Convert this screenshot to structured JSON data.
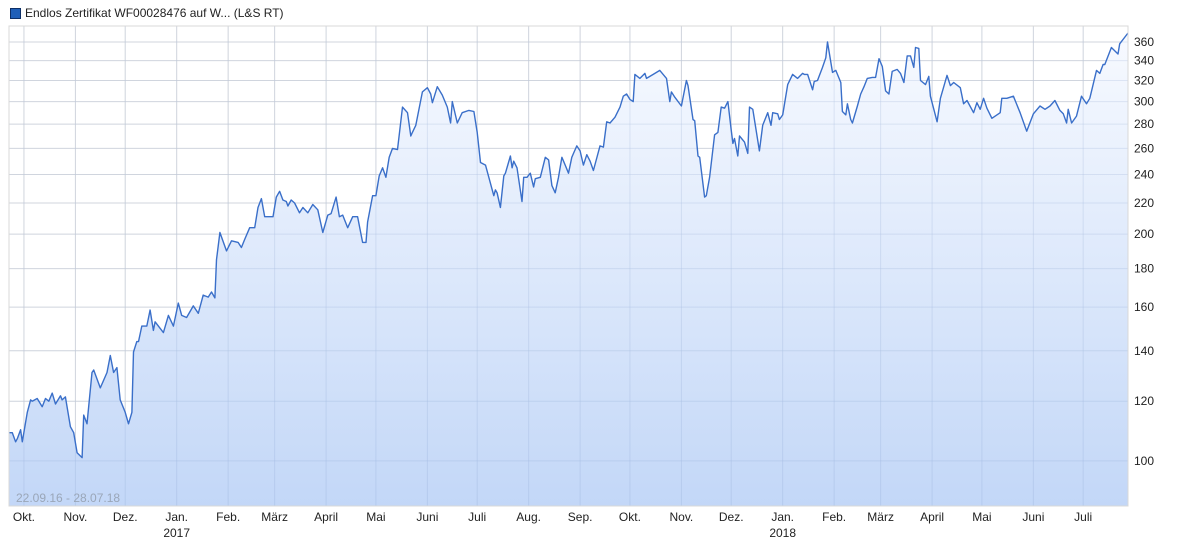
{
  "chart_data": {
    "type": "area",
    "legend": {
      "label": "Endlos Zertifikat WF00028476 auf W... (L&S RT)",
      "color": "#1f5fb8",
      "placement": "top-left"
    },
    "range_label": "22.09.16 - 28.07.18",
    "y_scale": "log",
    "ylim": [
      87.1,
      378
    ],
    "xlim": [
      "2016-09-22",
      "2018-07-28"
    ],
    "grid": true,
    "y_axis_position": "right",
    "line_color": "#3a6fc9",
    "fill_top_color": "#f6f9ff",
    "fill_bottom_color": "#b8d0f6",
    "y_ticks": [
      100,
      120,
      140,
      160,
      180,
      200,
      220,
      240,
      260,
      280,
      300,
      320,
      340,
      360
    ],
    "x_ticks": [
      {
        "date": "2016-10-01",
        "label": "Okt."
      },
      {
        "date": "2016-11-01",
        "label": "Nov."
      },
      {
        "date": "2016-12-01",
        "label": "Dez."
      },
      {
        "date": "2017-01-01",
        "label": "Jan.",
        "year": "2017"
      },
      {
        "date": "2017-02-01",
        "label": "Feb."
      },
      {
        "date": "2017-03-01",
        "label": "März"
      },
      {
        "date": "2017-04-01",
        "label": "April"
      },
      {
        "date": "2017-05-01",
        "label": "Mai"
      },
      {
        "date": "2017-06-01",
        "label": "Juni"
      },
      {
        "date": "2017-07-01",
        "label": "Juli"
      },
      {
        "date": "2017-08-01",
        "label": "Aug."
      },
      {
        "date": "2017-09-01",
        "label": "Sep."
      },
      {
        "date": "2017-10-01",
        "label": "Okt."
      },
      {
        "date": "2017-11-01",
        "label": "Nov."
      },
      {
        "date": "2017-12-01",
        "label": "Dez."
      },
      {
        "date": "2018-01-01",
        "label": "Jan.",
        "year": "2018"
      },
      {
        "date": "2018-02-01",
        "label": "Feb."
      },
      {
        "date": "2018-03-01",
        "label": "März"
      },
      {
        "date": "2018-04-01",
        "label": "April"
      },
      {
        "date": "2018-05-01",
        "label": "Mai"
      },
      {
        "date": "2018-06-01",
        "label": "Juni"
      },
      {
        "date": "2018-07-01",
        "label": "Juli"
      }
    ],
    "series": [
      [
        "2016-09-22",
        109
      ],
      [
        "2016-09-24",
        109
      ],
      [
        "2016-09-26",
        106
      ],
      [
        "2016-09-27",
        107
      ],
      [
        "2016-09-29",
        110
      ],
      [
        "2016-09-30",
        106
      ],
      [
        "2016-10-03",
        116
      ],
      [
        "2016-10-05",
        120.5
      ],
      [
        "2016-10-06",
        120
      ],
      [
        "2016-10-09",
        121
      ],
      [
        "2016-10-12",
        118
      ],
      [
        "2016-10-14",
        121
      ],
      [
        "2016-10-16",
        120
      ],
      [
        "2016-10-18",
        123
      ],
      [
        "2016-10-20",
        119
      ],
      [
        "2016-10-23",
        122
      ],
      [
        "2016-10-24",
        120.5
      ],
      [
        "2016-10-26",
        121.6
      ],
      [
        "2016-10-29",
        111
      ],
      [
        "2016-10-31",
        109
      ],
      [
        "2016-11-02",
        102.5
      ],
      [
        "2016-11-05",
        101
      ],
      [
        "2016-11-06",
        115
      ],
      [
        "2016-11-08",
        112
      ],
      [
        "2016-11-11",
        131
      ],
      [
        "2016-11-12",
        132
      ],
      [
        "2016-11-16",
        125
      ],
      [
        "2016-11-20",
        131
      ],
      [
        "2016-11-22",
        138
      ],
      [
        "2016-11-24",
        131
      ],
      [
        "2016-11-26",
        133
      ],
      [
        "2016-11-28",
        120.5
      ],
      [
        "2016-12-01",
        116
      ],
      [
        "2016-12-03",
        112
      ],
      [
        "2016-12-05",
        116
      ],
      [
        "2016-12-06",
        139.5
      ],
      [
        "2016-12-08",
        144
      ],
      [
        "2016-12-09",
        144
      ],
      [
        "2016-12-11",
        151
      ],
      [
        "2016-12-14",
        151
      ],
      [
        "2016-12-16",
        158.6
      ],
      [
        "2016-12-18",
        149
      ],
      [
        "2016-12-19",
        153
      ],
      [
        "2016-12-24",
        148
      ],
      [
        "2016-12-27",
        156
      ],
      [
        "2016-12-30",
        151
      ],
      [
        "2017-01-02",
        162
      ],
      [
        "2017-01-04",
        156
      ],
      [
        "2017-01-07",
        155
      ],
      [
        "2017-01-11",
        160.6
      ],
      [
        "2017-01-14",
        157
      ],
      [
        "2017-01-17",
        166
      ],
      [
        "2017-01-20",
        165
      ],
      [
        "2017-01-22",
        167.6
      ],
      [
        "2017-01-24",
        164.6
      ],
      [
        "2017-01-25",
        185
      ],
      [
        "2017-01-27",
        201
      ],
      [
        "2017-01-31",
        190
      ],
      [
        "2017-02-03",
        196
      ],
      [
        "2017-02-07",
        195
      ],
      [
        "2017-02-09",
        192
      ],
      [
        "2017-02-11",
        197
      ],
      [
        "2017-02-14",
        204
      ],
      [
        "2017-02-17",
        204
      ],
      [
        "2017-02-19",
        217
      ],
      [
        "2017-02-21",
        223
      ],
      [
        "2017-02-23",
        211
      ],
      [
        "2017-02-28",
        211
      ],
      [
        "2017-03-02",
        224
      ],
      [
        "2017-03-04",
        228
      ],
      [
        "2017-03-06",
        222
      ],
      [
        "2017-03-08",
        221
      ],
      [
        "2017-03-09",
        218
      ],
      [
        "2017-03-11",
        222
      ],
      [
        "2017-03-13",
        220
      ],
      [
        "2017-03-16",
        213.5
      ],
      [
        "2017-03-18",
        217
      ],
      [
        "2017-03-21",
        213.5
      ],
      [
        "2017-03-24",
        219
      ],
      [
        "2017-03-27",
        215.5
      ],
      [
        "2017-03-30",
        201
      ],
      [
        "2017-04-02",
        212
      ],
      [
        "2017-04-04",
        213
      ],
      [
        "2017-04-07",
        224
      ],
      [
        "2017-04-09",
        211
      ],
      [
        "2017-04-11",
        212
      ],
      [
        "2017-04-14",
        204
      ],
      [
        "2017-04-17",
        211
      ],
      [
        "2017-04-20",
        211
      ],
      [
        "2017-04-23",
        195
      ],
      [
        "2017-04-25",
        195
      ],
      [
        "2017-04-26",
        207.6
      ],
      [
        "2017-04-29",
        225
      ],
      [
        "2017-05-01",
        225
      ],
      [
        "2017-05-03",
        239
      ],
      [
        "2017-05-05",
        245
      ],
      [
        "2017-05-07",
        238
      ],
      [
        "2017-05-09",
        253
      ],
      [
        "2017-05-11",
        260
      ],
      [
        "2017-05-14",
        259
      ],
      [
        "2017-05-17",
        295
      ],
      [
        "2017-05-20",
        290
      ],
      [
        "2017-05-22",
        270
      ],
      [
        "2017-05-23",
        273
      ],
      [
        "2017-05-25",
        279
      ],
      [
        "2017-05-29",
        309
      ],
      [
        "2017-06-01",
        313
      ],
      [
        "2017-06-03",
        307
      ],
      [
        "2017-06-04",
        299
      ],
      [
        "2017-06-07",
        314
      ],
      [
        "2017-06-10",
        306
      ],
      [
        "2017-06-13",
        295
      ],
      [
        "2017-06-15",
        281
      ],
      [
        "2017-06-16",
        300
      ],
      [
        "2017-06-19",
        281
      ],
      [
        "2017-06-22",
        290
      ],
      [
        "2017-06-26",
        292
      ],
      [
        "2017-06-29",
        291
      ],
      [
        "2017-07-01",
        273
      ],
      [
        "2017-07-03",
        249
      ],
      [
        "2017-07-06",
        247
      ],
      [
        "2017-07-11",
        225
      ],
      [
        "2017-07-12",
        229
      ],
      [
        "2017-07-13",
        227
      ],
      [
        "2017-07-15",
        217
      ],
      [
        "2017-07-17",
        239
      ],
      [
        "2017-07-18",
        241
      ],
      [
        "2017-07-21",
        254
      ],
      [
        "2017-07-22",
        245
      ],
      [
        "2017-07-23",
        250
      ],
      [
        "2017-07-25",
        245
      ],
      [
        "2017-07-28",
        221
      ],
      [
        "2017-07-29",
        238
      ],
      [
        "2017-07-31",
        238
      ],
      [
        "2017-08-02",
        241
      ],
      [
        "2017-08-04",
        231
      ],
      [
        "2017-08-05",
        237
      ],
      [
        "2017-08-08",
        238
      ],
      [
        "2017-08-11",
        253
      ],
      [
        "2017-08-13",
        251
      ],
      [
        "2017-08-15",
        232
      ],
      [
        "2017-08-17",
        227
      ],
      [
        "2017-08-19",
        238
      ],
      [
        "2017-08-21",
        253
      ],
      [
        "2017-08-23",
        247
      ],
      [
        "2017-08-25",
        241
      ],
      [
        "2017-08-27",
        253
      ],
      [
        "2017-08-28",
        256
      ],
      [
        "2017-08-30",
        262
      ],
      [
        "2017-09-01",
        258
      ],
      [
        "2017-09-03",
        247
      ],
      [
        "2017-09-05",
        255
      ],
      [
        "2017-09-07",
        250
      ],
      [
        "2017-09-09",
        243
      ],
      [
        "2017-09-13",
        262
      ],
      [
        "2017-09-15",
        261
      ],
      [
        "2017-09-17",
        282
      ],
      [
        "2017-09-19",
        281
      ],
      [
        "2017-09-22",
        286
      ],
      [
        "2017-09-25",
        295
      ],
      [
        "2017-09-27",
        305
      ],
      [
        "2017-09-29",
        307
      ],
      [
        "2017-10-01",
        302
      ],
      [
        "2017-10-03",
        300
      ],
      [
        "2017-10-04",
        326
      ],
      [
        "2017-10-07",
        322
      ],
      [
        "2017-10-10",
        327
      ],
      [
        "2017-10-11",
        322
      ],
      [
        "2017-10-15",
        326
      ],
      [
        "2017-10-19",
        330
      ],
      [
        "2017-10-23",
        322
      ],
      [
        "2017-10-25",
        300
      ],
      [
        "2017-10-26",
        309
      ],
      [
        "2017-10-28",
        304
      ],
      [
        "2017-11-01",
        296
      ],
      [
        "2017-11-04",
        320
      ],
      [
        "2017-11-05",
        315
      ],
      [
        "2017-11-08",
        284
      ],
      [
        "2017-11-09",
        283
      ],
      [
        "2017-11-11",
        254
      ],
      [
        "2017-11-12",
        253
      ],
      [
        "2017-11-15",
        224
      ],
      [
        "2017-11-16",
        225
      ],
      [
        "2017-11-18",
        238
      ],
      [
        "2017-11-21",
        271
      ],
      [
        "2017-11-23",
        273
      ],
      [
        "2017-11-25",
        295
      ],
      [
        "2017-11-27",
        294
      ],
      [
        "2017-11-29",
        300
      ],
      [
        "2017-12-01",
        275
      ],
      [
        "2017-12-02",
        264
      ],
      [
        "2017-12-03",
        268
      ],
      [
        "2017-12-05",
        254
      ],
      [
        "2017-12-06",
        270
      ],
      [
        "2017-12-09",
        265
      ],
      [
        "2017-12-11",
        256
      ],
      [
        "2017-12-12",
        295
      ],
      [
        "2017-12-14",
        293
      ],
      [
        "2017-12-18",
        258
      ],
      [
        "2017-12-20",
        279
      ],
      [
        "2017-12-23",
        290
      ],
      [
        "2017-12-25",
        279
      ],
      [
        "2017-12-26",
        290
      ],
      [
        "2017-12-29",
        289
      ],
      [
        "2017-12-30",
        284
      ],
      [
        "2018-01-01",
        288
      ],
      [
        "2018-01-04",
        316
      ],
      [
        "2018-01-07",
        326
      ],
      [
        "2018-01-10",
        322
      ],
      [
        "2018-01-13",
        327
      ],
      [
        "2018-01-14",
        326
      ],
      [
        "2018-01-16",
        326
      ],
      [
        "2018-01-19",
        311
      ],
      [
        "2018-01-20",
        319
      ],
      [
        "2018-01-22",
        320
      ],
      [
        "2018-01-25",
        333
      ],
      [
        "2018-01-27",
        343
      ],
      [
        "2018-01-28",
        360
      ],
      [
        "2018-01-31",
        328
      ],
      [
        "2018-02-02",
        330
      ],
      [
        "2018-02-05",
        318
      ],
      [
        "2018-02-06",
        291
      ],
      [
        "2018-02-08",
        288
      ],
      [
        "2018-02-09",
        298
      ],
      [
        "2018-02-11",
        284
      ],
      [
        "2018-02-12",
        281
      ],
      [
        "2018-02-15",
        296
      ],
      [
        "2018-02-17",
        307
      ],
      [
        "2018-02-19",
        314
      ],
      [
        "2018-02-21",
        322
      ],
      [
        "2018-02-24",
        323
      ],
      [
        "2018-02-26",
        323
      ],
      [
        "2018-02-28",
        342
      ],
      [
        "2018-03-02",
        334
      ],
      [
        "2018-03-04",
        310
      ],
      [
        "2018-03-06",
        307
      ],
      [
        "2018-03-08",
        329
      ],
      [
        "2018-03-11",
        331
      ],
      [
        "2018-03-13",
        327
      ],
      [
        "2018-03-15",
        318
      ],
      [
        "2018-03-17",
        345
      ],
      [
        "2018-03-19",
        345
      ],
      [
        "2018-03-21",
        333
      ],
      [
        "2018-03-22",
        354
      ],
      [
        "2018-03-24",
        353
      ],
      [
        "2018-03-25",
        320
      ],
      [
        "2018-03-28",
        316
      ],
      [
        "2018-03-30",
        324
      ],
      [
        "2018-03-31",
        305
      ],
      [
        "2018-04-04",
        282
      ],
      [
        "2018-04-06",
        303
      ],
      [
        "2018-04-10",
        325
      ],
      [
        "2018-04-12",
        315
      ],
      [
        "2018-04-14",
        318
      ],
      [
        "2018-04-18",
        313
      ],
      [
        "2018-04-20",
        298
      ],
      [
        "2018-04-22",
        301
      ],
      [
        "2018-04-26",
        290
      ],
      [
        "2018-04-28",
        299
      ],
      [
        "2018-04-30",
        293
      ],
      [
        "2018-05-02",
        303
      ],
      [
        "2018-05-04",
        294
      ],
      [
        "2018-05-07",
        285
      ],
      [
        "2018-05-12",
        290
      ],
      [
        "2018-05-13",
        303
      ],
      [
        "2018-05-16",
        303
      ],
      [
        "2018-05-20",
        305
      ],
      [
        "2018-05-24",
        290
      ],
      [
        "2018-05-28",
        274
      ],
      [
        "2018-06-01",
        289
      ],
      [
        "2018-06-05",
        296
      ],
      [
        "2018-06-08",
        293
      ],
      [
        "2018-06-11",
        296
      ],
      [
        "2018-06-14",
        301
      ],
      [
        "2018-06-17",
        292
      ],
      [
        "2018-06-19",
        289
      ],
      [
        "2018-06-21",
        281
      ],
      [
        "2018-06-22",
        293
      ],
      [
        "2018-06-24",
        281
      ],
      [
        "2018-06-27",
        287
      ],
      [
        "2018-06-30",
        305
      ],
      [
        "2018-07-03",
        298
      ],
      [
        "2018-07-05",
        303
      ],
      [
        "2018-07-09",
        330
      ],
      [
        "2018-07-11",
        327
      ],
      [
        "2018-07-13",
        336
      ],
      [
        "2018-07-14",
        336
      ],
      [
        "2018-07-18",
        354
      ],
      [
        "2018-07-22",
        347
      ],
      [
        "2018-07-23",
        358
      ],
      [
        "2018-07-28",
        370
      ]
    ]
  }
}
